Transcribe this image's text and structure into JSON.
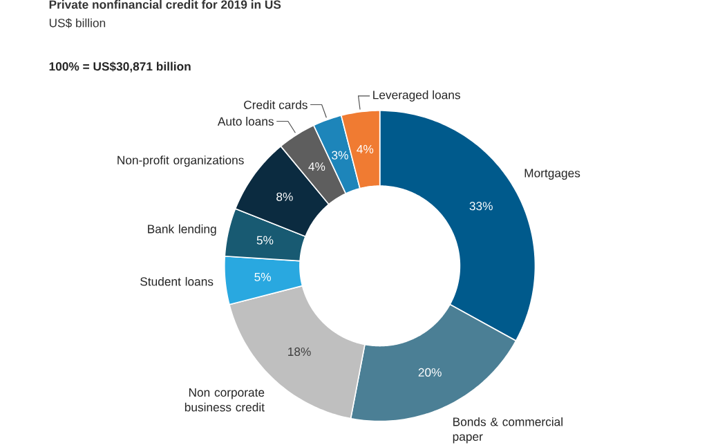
{
  "chart_data": {
    "type": "donut",
    "title": "Private nonfinancial credit for 2019 in US",
    "subtitle": "US$ billion",
    "annotations": [
      "100% = US$30,871 billion"
    ],
    "categories": [
      "Mortgages",
      "Bonds & commercial paper",
      "Non corporate business credit",
      "Student loans",
      "Bank lending",
      "Non-profit organizations",
      "Auto loans",
      "Credit cards",
      "Leveraged loans"
    ],
    "values": [
      33,
      20,
      18,
      5,
      5,
      8,
      4,
      3,
      4
    ],
    "colors": [
      "#005a8c",
      "#4b7f95",
      "#bfbfbf",
      "#29a8e0",
      "#185a72",
      "#0b2b40",
      "#5e5e5e",
      "#1d85ba",
      "#f07b32"
    ],
    "value_labels": [
      "33%",
      "20%",
      "18%",
      "5%",
      "5%",
      "8%",
      "4%",
      "3%",
      "4%"
    ]
  }
}
